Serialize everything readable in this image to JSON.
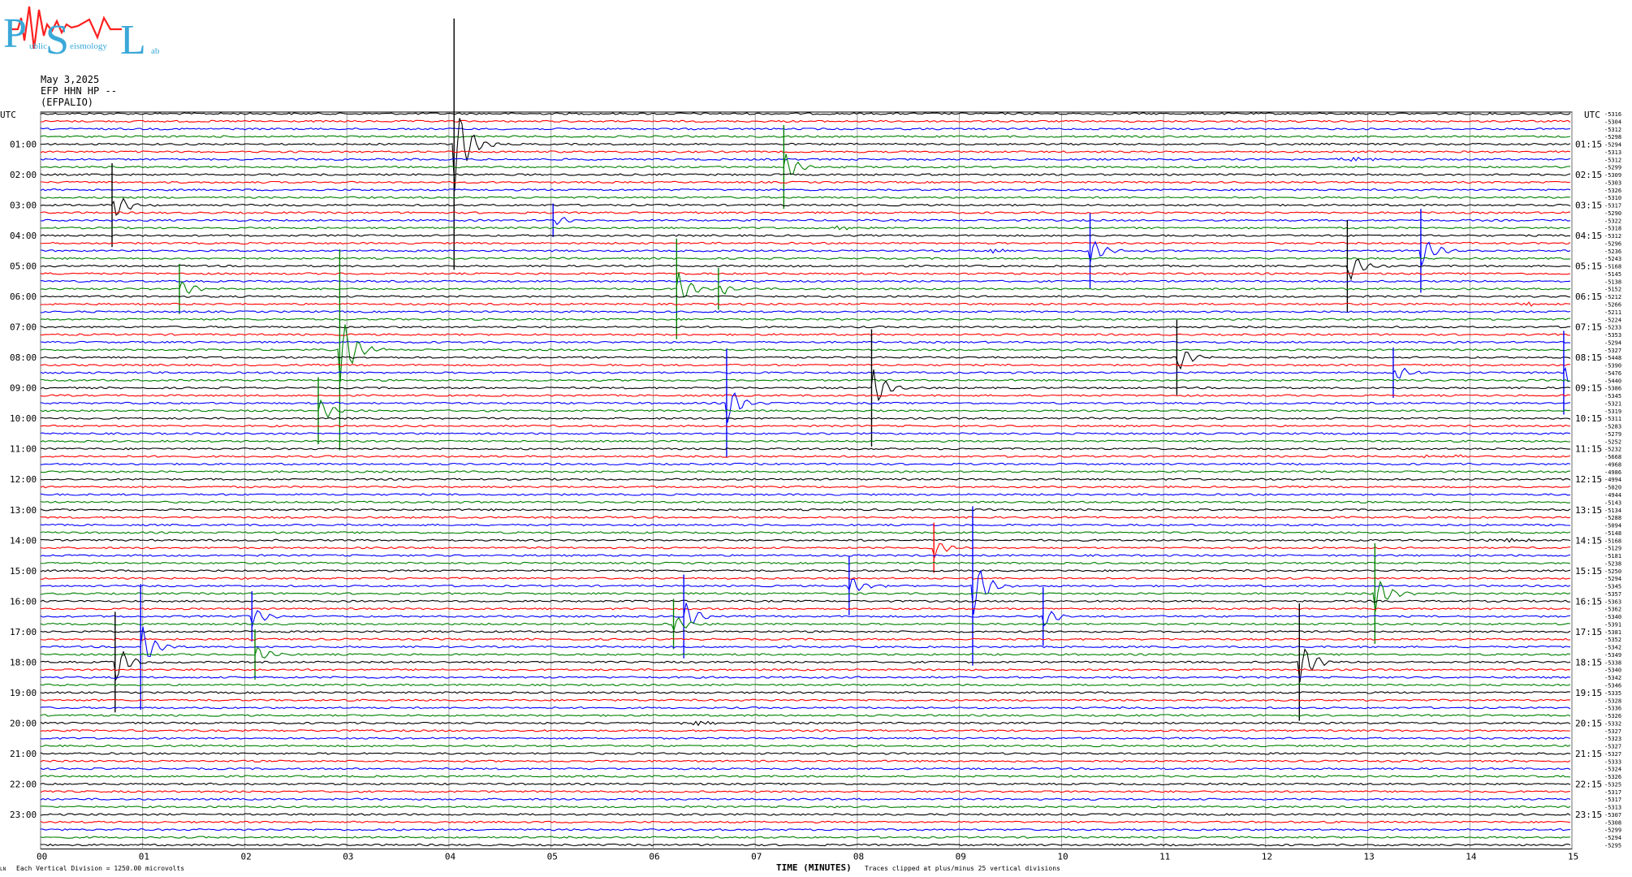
{
  "logo": {
    "big_letters": [
      "P",
      "S",
      "L"
    ],
    "small_words": [
      "ublic",
      "eismology",
      "ab"
    ]
  },
  "header": {
    "date": "May 3,2025",
    "channel": "EFP HHN HP --",
    "station": "(EFPALIO)"
  },
  "axes": {
    "left_title": "UTC",
    "right_title": "UTC",
    "xlabel": "TIME (MINUTES)"
  },
  "footer": {
    "left_mark": "LN",
    "scale_note": "Each Vertical Division = 1250.00 microvolts",
    "clip_note": "Traces clipped at plus/minus 25 vertical divisions"
  },
  "colors": {
    "trace_cycle": [
      "#000000",
      "#ff0000",
      "#0000ff",
      "#008000"
    ],
    "grid": "#888888",
    "background": "#ffffff"
  },
  "chart_data": {
    "type": "line",
    "description_none": "",
    "x_range_minutes": [
      0,
      15
    ],
    "x_ticks": [
      "00",
      "01",
      "02",
      "03",
      "04",
      "05",
      "06",
      "07",
      "08",
      "09",
      "10",
      "11",
      "12",
      "13",
      "14",
      "15"
    ],
    "left_hour_labels": [
      "01:00",
      "02:00",
      "03:00",
      "04:00",
      "05:00",
      "06:00",
      "07:00",
      "08:00",
      "09:00",
      "10:00",
      "11:00",
      "12:00",
      "13:00",
      "14:00",
      "15:00",
      "16:00",
      "17:00",
      "18:00",
      "19:00",
      "20:00",
      "21:00",
      "22:00",
      "23:00"
    ],
    "right_hour_labels": [
      "01:15",
      "02:15",
      "03:15",
      "04:15",
      "05:15",
      "06:15",
      "07:15",
      "08:15",
      "09:15",
      "10:15",
      "11:15",
      "12:15",
      "13:15",
      "14:15",
      "15:15",
      "16:15",
      "17:15",
      "18:15",
      "19:15",
      "20:15",
      "21:15",
      "22:15",
      "23:15"
    ],
    "trace_offsets": [
      "-5316",
      "-5304",
      "-5312",
      "-5298",
      "-5294",
      "-5313",
      "-5312",
      "-5299",
      "-5309",
      "-5303",
      "-5326",
      "-5310",
      "-5317",
      "-5290",
      "-5322",
      "-5318",
      "-5312",
      "-5296",
      "-5236",
      "-5243",
      "-5168",
      "-5145",
      "-5138",
      "-5152",
      "-5212",
      "-5266",
      "-5211",
      "-5224",
      "-5233",
      "-5353",
      "-5294",
      "-5327",
      "-5448",
      "-5390",
      "-5476",
      "-5440",
      "-5386",
      "-5345",
      "-5321",
      "-5319",
      "-5311",
      "-5283",
      "-5279",
      "-5252",
      "-5232",
      "-5668",
      "-4968",
      "-4986",
      "-4994",
      "-5020",
      "-4944",
      "-5143",
      "-5134",
      "-5288",
      "-5094",
      "-5148",
      "-5168",
      "-5129",
      "-5181",
      "-5238",
      "-5250",
      "-5294",
      "-5345",
      "-5357",
      "-5363",
      "-5362",
      "-5340",
      "-5391",
      "-5381",
      "-5352",
      "-5342",
      "-5349",
      "-5338",
      "-5340",
      "-5342",
      "-5346",
      "-5335",
      "-5328",
      "-5336",
      "-5326",
      "-5332",
      "-5327",
      "-5323",
      "-5327",
      "-5327",
      "-5333",
      "-5324",
      "-5326",
      "-5325",
      "-5317",
      "-5317",
      "-5313",
      "-5307",
      "-5308",
      "-5299",
      "-5294",
      "-5295"
    ],
    "events": [
      {
        "minute": 4.05,
        "trace": 4,
        "amp": 30
      },
      {
        "minute": 7.28,
        "trace": 7,
        "amp": 10
      },
      {
        "minute": 0.7,
        "trace": 12,
        "amp": 10
      },
      {
        "minute": 5.02,
        "trace": 14,
        "amp": 4
      },
      {
        "minute": 7.7,
        "trace": 15,
        "amp": 1
      },
      {
        "minute": 10.28,
        "trace": 18,
        "amp": 9
      },
      {
        "minute": 9.2,
        "trace": 18,
        "amp": 1
      },
      {
        "minute": 12.8,
        "trace": 20,
        "amp": 11
      },
      {
        "minute": 13.52,
        "trace": 18,
        "amp": 10
      },
      {
        "minute": 1.36,
        "trace": 23,
        "amp": 6
      },
      {
        "minute": 6.23,
        "trace": 23,
        "amp": 12
      },
      {
        "minute": 6.64,
        "trace": 23,
        "amp": 5
      },
      {
        "minute": 2.93,
        "trace": 31,
        "amp": 24
      },
      {
        "minute": 14.4,
        "trace": 25,
        "amp": 1
      },
      {
        "minute": 11.13,
        "trace": 32,
        "amp": 9
      },
      {
        "minute": 13.25,
        "trace": 34,
        "amp": 6
      },
      {
        "minute": 14.92,
        "trace": 34,
        "amp": 10
      },
      {
        "minute": 8.14,
        "trace": 36,
        "amp": 14
      },
      {
        "minute": 6.72,
        "trace": 38,
        "amp": 13
      },
      {
        "minute": 2.72,
        "trace": 39,
        "amp": 8
      },
      {
        "minute": 13.6,
        "trace": 45,
        "amp": 1
      },
      {
        "minute": 8.75,
        "trace": 57,
        "amp": 6
      },
      {
        "minute": 9.13,
        "trace": 62,
        "amp": 19
      },
      {
        "minute": 7.92,
        "trace": 62,
        "amp": 7
      },
      {
        "minute": 13.07,
        "trace": 63,
        "amp": 12
      },
      {
        "minute": 9.82,
        "trace": 66,
        "amp": 7
      },
      {
        "minute": 2.07,
        "trace": 66,
        "amp": 6
      },
      {
        "minute": 6.3,
        "trace": 66,
        "amp": 10
      },
      {
        "minute": 6.2,
        "trace": 67,
        "amp": 6
      },
      {
        "minute": 0.98,
        "trace": 70,
        "amp": 15
      },
      {
        "minute": 2.1,
        "trace": 71,
        "amp": 6
      },
      {
        "minute": 0.73,
        "trace": 72,
        "amp": 12
      },
      {
        "minute": 12.33,
        "trace": 72,
        "amp": 14
      },
      {
        "minute": 6.3,
        "trace": 80,
        "amp": 1
      },
      {
        "minute": 12.72,
        "trace": 6,
        "amp": 0
      },
      {
        "minute": 14.18,
        "trace": 56,
        "amp": 1
      }
    ]
  }
}
